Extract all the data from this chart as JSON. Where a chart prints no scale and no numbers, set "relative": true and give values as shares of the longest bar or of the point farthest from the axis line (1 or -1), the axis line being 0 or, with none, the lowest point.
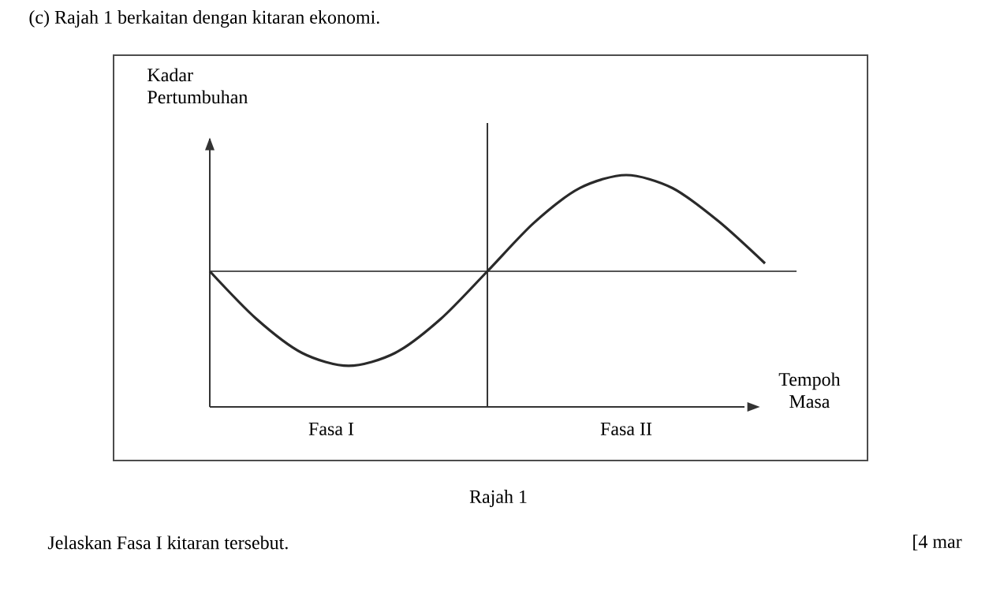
{
  "chart_data": {
    "type": "line",
    "title": "(c) Rajah 1 berkaitan dengan kitaran ekonomi.",
    "xlabel": "Tempoh Masa",
    "ylabel": "Kadar Pertumbuhan",
    "annotations": [
      "Fasa I",
      "Fasa II",
      "Rajah 1",
      "Jelaskan Fasa I kitaran tersebut.",
      "[4 mar"
    ],
    "categories": [
      null,
      null,
      null,
      null,
      null,
      null,
      null,
      null,
      null,
      null,
      null,
      null,
      null
    ],
    "values": [
      0.585,
      0.381,
      0.232,
      0.177,
      0.232,
      0.381,
      0.585,
      0.793,
      0.944,
      1,
      0.944,
      0.8,
      0.619
    ],
    "color": "#2a2a2a",
    "relative": true,
    "ref_lines": [
      {
        "axis": "y",
        "value": 0.585,
        "color": "#555555"
      }
    ]
  }
}
